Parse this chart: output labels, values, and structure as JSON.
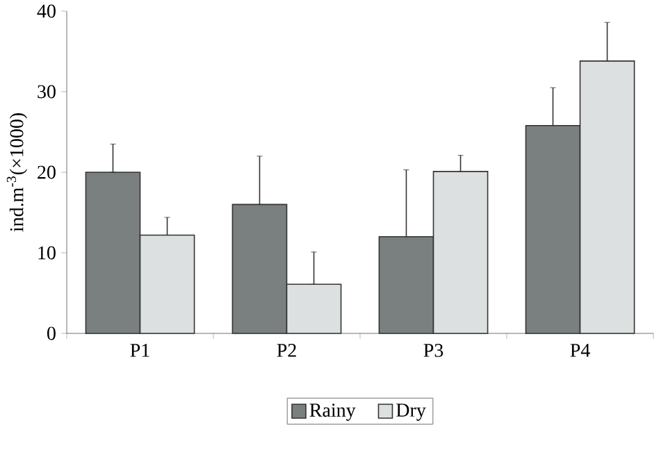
{
  "chart_data": {
    "type": "bar",
    "ylabel": "ind.m$^{-3}$(×1000)",
    "categories": [
      "P1",
      "P2",
      "P3",
      "P4"
    ],
    "series": [
      {
        "name": "Rainy",
        "color": "#7a8080",
        "values": [
          20,
          16,
          12,
          25.8
        ],
        "errors": [
          [
            20,
            23.5
          ],
          [
            16,
            22
          ],
          [
            12,
            20.3
          ],
          [
            25.8,
            30.5
          ]
        ]
      },
      {
        "name": "Dry",
        "color": "#dde0e0",
        "values": [
          12.2,
          6.1,
          20.1,
          33.8
        ],
        "errors": [
          [
            12.2,
            14.4
          ],
          [
            6.1,
            10.1
          ],
          [
            20.1,
            22.1
          ],
          [
            33.8,
            38.6
          ]
        ]
      }
    ],
    "ylim": [
      0,
      40
    ],
    "yticks": [
      0,
      10,
      20,
      30,
      40
    ],
    "legend": "bottom"
  }
}
